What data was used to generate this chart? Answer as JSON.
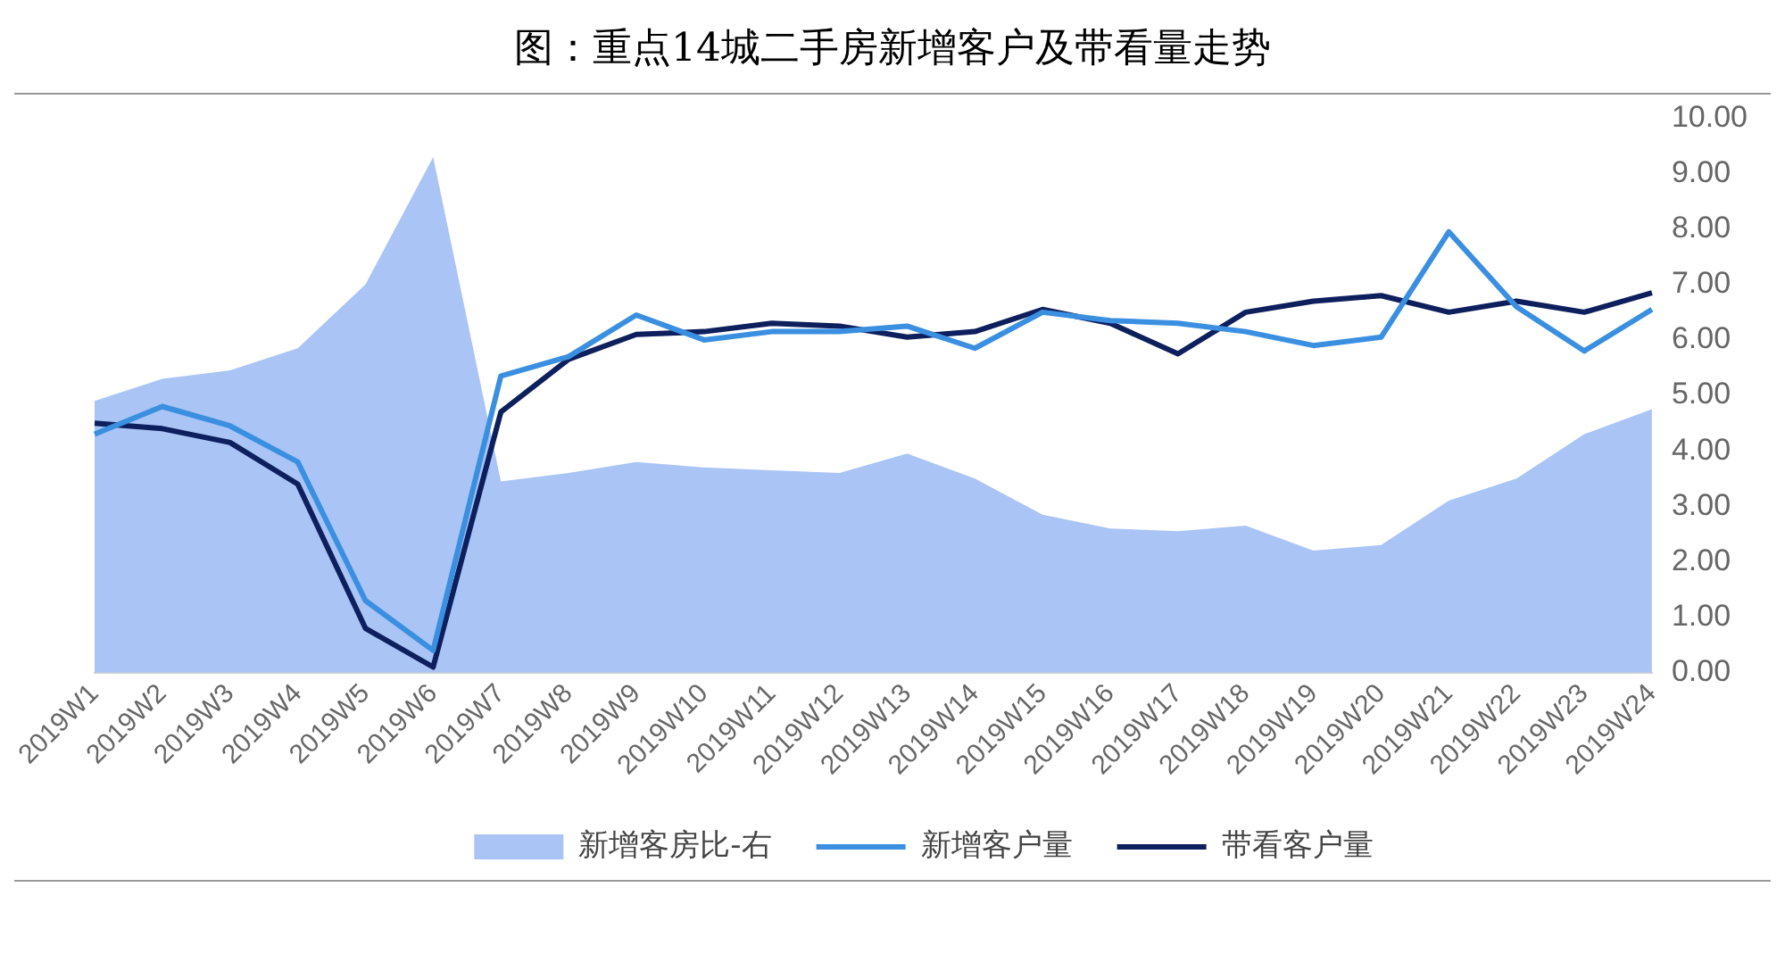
{
  "chart_data": {
    "type": "line",
    "title": "图：重点14城二手房新增客户及带看量走势",
    "categories": [
      "2019W1",
      "2019W2",
      "2019W3",
      "2019W4",
      "2019W5",
      "2019W6",
      "2019W7",
      "2019W8",
      "2019W9",
      "2019W10",
      "2019W11",
      "2019W12",
      "2019W13",
      "2019W14",
      "2019W15",
      "2019W16",
      "2019W17",
      "2019W18",
      "2019W19",
      "2019W20",
      "2019W21",
      "2019W22",
      "2019W23",
      "2019W24"
    ],
    "series": [
      {
        "name": "新增客房比-右",
        "type": "area",
        "color": "#a9c4f5",
        "values": [
          4.9,
          5.3,
          5.45,
          5.85,
          7.0,
          9.3,
          3.45,
          3.6,
          3.8,
          3.7,
          3.65,
          3.6,
          3.95,
          3.5,
          2.85,
          2.6,
          2.55,
          2.65,
          2.2,
          2.3,
          3.1,
          3.5,
          4.3,
          4.75
        ]
      },
      {
        "name": "新增客户量",
        "color": "#3a8fe0",
        "values": [
          4.3,
          4.8,
          4.45,
          3.8,
          1.3,
          0.4,
          5.35,
          5.7,
          6.45,
          6.0,
          6.15,
          6.15,
          6.25,
          5.85,
          6.5,
          6.35,
          6.3,
          6.15,
          5.9,
          6.05,
          7.95,
          6.6,
          5.8,
          6.55
        ]
      },
      {
        "name": "带看客户量",
        "color": "#0d1f5c",
        "values": [
          4.5,
          4.4,
          4.15,
          3.4,
          0.8,
          0.1,
          4.7,
          5.65,
          6.1,
          6.15,
          6.3,
          6.25,
          6.05,
          6.15,
          6.55,
          6.3,
          5.75,
          6.5,
          6.7,
          6.8,
          6.5,
          6.7,
          6.5,
          6.85
        ]
      }
    ],
    "ylim": [
      0,
      10
    ],
    "yticks": [
      {
        "value": 0,
        "label": "0.00"
      },
      {
        "value": 1,
        "label": "1.00"
      },
      {
        "value": 2,
        "label": "2.00"
      },
      {
        "value": 3,
        "label": "3.00"
      },
      {
        "value": 4,
        "label": "4.00"
      },
      {
        "value": 5,
        "label": "5.00"
      },
      {
        "value": 6,
        "label": "6.00"
      },
      {
        "value": 7,
        "label": "7.00"
      },
      {
        "value": 8,
        "label": "8.00"
      },
      {
        "value": 9,
        "label": "9.00"
      },
      {
        "value": 10,
        "label": "10.00"
      }
    ],
    "grid": false,
    "legend": "bottom",
    "marker": "none",
    "line_style": "solid"
  }
}
